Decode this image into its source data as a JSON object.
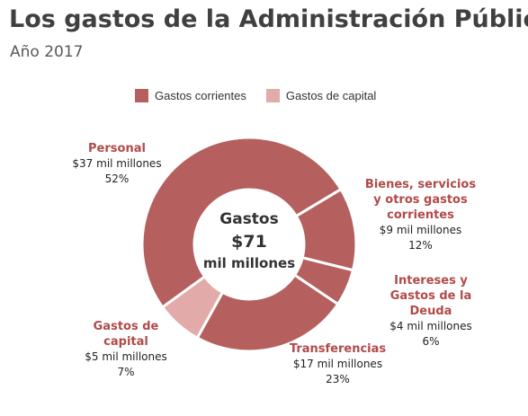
{
  "chart_data": {
    "type": "donut",
    "title": "Los gastos de la Administración Pública",
    "subtitle": "Año 2017",
    "legend": [
      {
        "name": "Gastos corrientes",
        "color": "#b5605f"
      },
      {
        "name": "Gastos de capital",
        "color": "#e2aaa9"
      }
    ],
    "categories": [
      "Personal",
      "Bienes, servicios y otros gastos corrientes",
      "Intereses y Gastos de la Deuda",
      "Transferencias",
      "Gastos de capital"
    ],
    "groups": [
      0,
      0,
      0,
      0,
      1
    ],
    "values": [
      37,
      9,
      4,
      17,
      5
    ],
    "value_labels": [
      "$37 mil millones",
      "$9 mil millones",
      "$4 mil millones",
      "$17 mil millones",
      "$5 mil millones"
    ],
    "percents": [
      52,
      12,
      6,
      23,
      7
    ],
    "percent_labels": [
      "52%",
      "12%",
      "6%",
      "23%",
      "7%"
    ],
    "center_lines": [
      "Gastos",
      "$71",
      "mil millones"
    ]
  }
}
